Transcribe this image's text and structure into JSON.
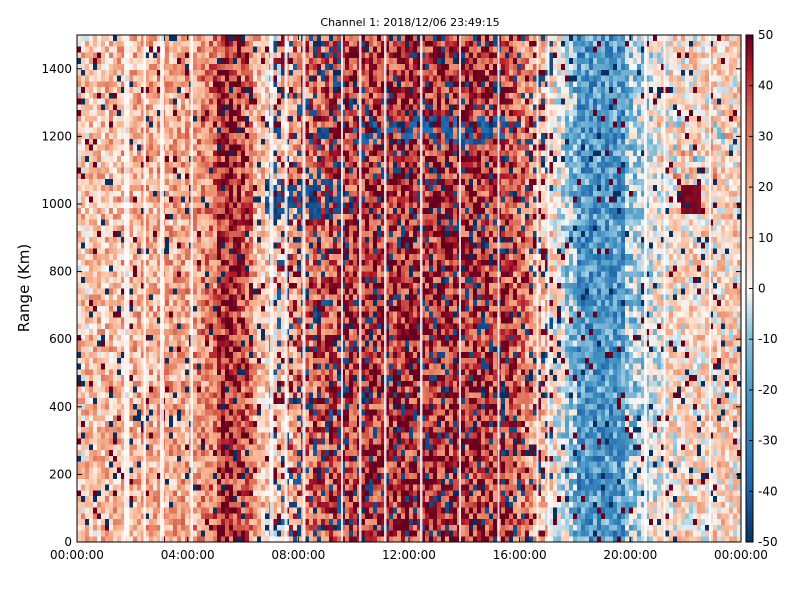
{
  "chart_data": {
    "type": "heatmap",
    "title": "Channel 1: 2018/12/06 23:49:15",
    "xlabel": "",
    "ylabel": "Range (Km)",
    "xlim": [
      "00:00:00",
      "24:00:00"
    ],
    "ylim": [
      0,
      1500
    ],
    "x_ticks": [
      "00:00:00",
      "04:00:00",
      "08:00:00",
      "12:00:00",
      "16:00:00",
      "20:00:00",
      "00:00:00"
    ],
    "y_ticks": [
      0,
      200,
      400,
      600,
      800,
      1000,
      1200,
      1400
    ],
    "colorbar": {
      "min": -50,
      "max": 50,
      "ticks": [
        50,
        40,
        30,
        20,
        10,
        0,
        -10,
        -20,
        -30,
        -40,
        -50
      ],
      "colormap": "RdBu_r"
    },
    "colors": {
      "low": "#053061",
      "mid": "#f7f7f7",
      "high": "#67001f"
    },
    "description_bands": [
      {
        "x": 0.0,
        "mean": 12
      },
      {
        "x": 2.0,
        "mean": 18
      },
      {
        "x": 4.0,
        "mean": 20
      },
      {
        "x": 5.5,
        "mean": 34
      },
      {
        "x": 6.5,
        "mean": 18
      },
      {
        "x": 7.2,
        "mean": 8
      },
      {
        "x": 8.0,
        "mean": 24
      },
      {
        "x": 9.8,
        "mean": 38
      },
      {
        "x": 12.0,
        "mean": 40
      },
      {
        "x": 15.5,
        "mean": 38
      },
      {
        "x": 17.0,
        "mean": 12
      },
      {
        "x": 18.5,
        "mean": -24
      },
      {
        "x": 20.0,
        "mean": -8
      },
      {
        "x": 21.5,
        "mean": 8
      },
      {
        "x": 24.0,
        "mean": 10
      }
    ]
  }
}
